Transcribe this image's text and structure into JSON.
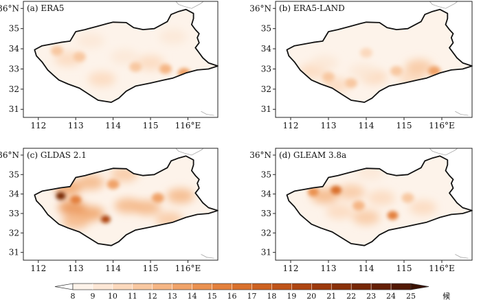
{
  "panels": [
    {
      "label": "(a) ERA5"
    },
    {
      "label": "(b) ERA5-LAND"
    },
    {
      "label": "(c) GLDAS 2.1"
    },
    {
      "label": "(d) GLEAM 3.8a"
    }
  ],
  "map": {
    "lon_ticks": [
      "112",
      "113",
      "114",
      "115",
      "116°E"
    ],
    "lat_ticks": [
      "36°N",
      "35",
      "34",
      "33",
      "32",
      "31"
    ],
    "lon_range": [
      111.6,
      116.8
    ],
    "lat_range": [
      30.6,
      36.35
    ]
  },
  "colorbar": {
    "ticks": [
      "8",
      "9",
      "10",
      "11",
      "12",
      "13",
      "14",
      "15",
      "16",
      "17",
      "18",
      "19",
      "20",
      "21",
      "22",
      "23",
      "24",
      "25"
    ],
    "unit": "候",
    "colors": [
      "#fdf3ea",
      "#fce7d6",
      "#fbd9bd",
      "#f8c8a1",
      "#f5b685",
      "#f0a369",
      "#ea9150",
      "#e3803c",
      "#d9702c",
      "#cd6120",
      "#bf5318",
      "#ae4511",
      "#9c390c",
      "#893009",
      "#762706",
      "#641f05",
      "#521803"
    ]
  },
  "chart_data": [
    {
      "type": "heatmap",
      "title": "(a) ERA5",
      "range": [
        8,
        25
      ],
      "hotspots": [
        {
          "lon": 112.5,
          "lat": 33.9,
          "value": 11
        },
        {
          "lon": 113.1,
          "lat": 33.6,
          "value": 11
        },
        {
          "lon": 114.6,
          "lat": 33.1,
          "value": 11
        },
        {
          "lon": 115.4,
          "lat": 33.0,
          "value": 12
        },
        {
          "lon": 115.9,
          "lat": 32.8,
          "value": 13
        }
      ]
    },
    {
      "type": "heatmap",
      "title": "(b) ERA5-LAND",
      "range": [
        8,
        25
      ],
      "hotspots": [
        {
          "lon": 113.0,
          "lat": 32.6,
          "value": 11
        },
        {
          "lon": 113.6,
          "lat": 32.3,
          "value": 11
        },
        {
          "lon": 114.8,
          "lat": 32.9,
          "value": 11
        },
        {
          "lon": 115.8,
          "lat": 32.9,
          "value": 13
        },
        {
          "lon": 114.0,
          "lat": 33.8,
          "value": 10
        }
      ]
    },
    {
      "type": "heatmap",
      "title": "(c) GLDAS 2.1",
      "range": [
        8,
        25
      ],
      "hotspots": [
        {
          "lon": 112.6,
          "lat": 33.9,
          "value": 22
        },
        {
          "lon": 113.0,
          "lat": 33.7,
          "value": 15
        },
        {
          "lon": 113.8,
          "lat": 32.7,
          "value": 19
        },
        {
          "lon": 114.0,
          "lat": 34.5,
          "value": 13
        },
        {
          "lon": 115.2,
          "lat": 33.8,
          "value": 13
        }
      ]
    },
    {
      "type": "heatmap",
      "title": "(d) GLEAM 3.8a",
      "range": [
        8,
        25
      ],
      "hotspots": [
        {
          "lon": 112.6,
          "lat": 34.1,
          "value": 14
        },
        {
          "lon": 113.2,
          "lat": 34.2,
          "value": 16
        },
        {
          "lon": 113.8,
          "lat": 33.4,
          "value": 12
        },
        {
          "lon": 114.7,
          "lat": 32.9,
          "value": 15
        },
        {
          "lon": 115.1,
          "lat": 33.8,
          "value": 11
        }
      ]
    }
  ]
}
